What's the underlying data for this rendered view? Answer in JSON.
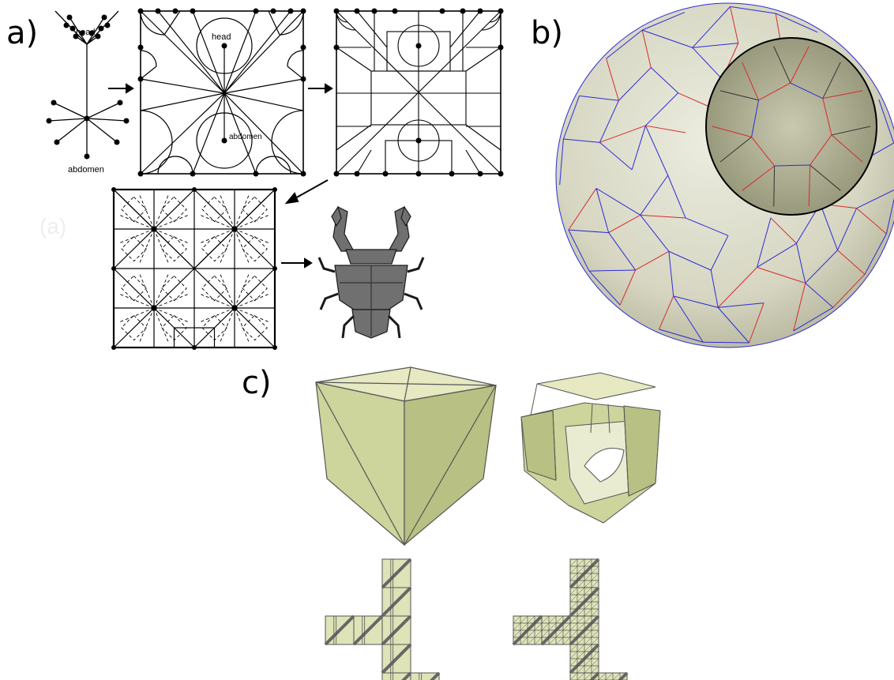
{
  "panels": {
    "a": {
      "label": "a)",
      "tree_labels": {
        "head": "head",
        "abdomen": "abdomen"
      },
      "watermark": "(a)"
    },
    "b": {
      "label": "b)"
    },
    "c": {
      "label": "c)"
    }
  },
  "colors": {
    "ink": "#000000",
    "paper_panel_a": "#ffffff",
    "beetle_fill": "#707070",
    "sphere_face": "#d9d9c7",
    "sphere_face_dark": "#b9b99e",
    "mountain_fold": "#2b2bd6",
    "valley_fold": "#d62b2b",
    "cube_light": "#e6e9c1",
    "cube_mid": "#cdd49c",
    "cube_dark": "#b8c083",
    "grid_dark": "#8e9470"
  }
}
